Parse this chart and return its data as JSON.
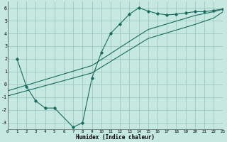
{
  "bg_color": "#c5e8e0",
  "grid_color": "#a0c8c0",
  "line_color": "#1a6b60",
  "xlabel": "Humidex (Indice chaleur)",
  "xlim": [
    0,
    23
  ],
  "ylim": [
    -3.5,
    6.5
  ],
  "yticks": [
    -3,
    -2,
    -1,
    0,
    1,
    2,
    3,
    4,
    5,
    6
  ],
  "xticks": [
    0,
    1,
    2,
    3,
    4,
    5,
    6,
    7,
    8,
    9,
    10,
    11,
    12,
    13,
    14,
    15,
    16,
    17,
    18,
    19,
    20,
    21,
    22,
    23
  ],
  "line1_x": [
    1,
    2,
    3,
    4,
    5,
    7,
    8,
    9,
    10,
    11,
    12,
    13,
    14,
    15,
    16,
    17,
    18,
    19,
    20,
    21,
    22,
    23
  ],
  "line1_y": [
    2.0,
    -0.15,
    -1.3,
    -1.85,
    -1.85,
    -3.35,
    -3.0,
    0.5,
    2.5,
    4.0,
    4.75,
    5.5,
    6.0,
    5.75,
    5.55,
    5.45,
    5.5,
    5.6,
    5.7,
    5.7,
    5.8,
    5.9
  ],
  "line2_x": [
    0,
    1,
    2,
    3,
    4,
    5,
    6,
    7,
    8,
    9,
    10,
    11,
    12,
    13,
    14,
    15,
    16,
    17,
    18,
    19,
    20,
    21,
    22,
    23
  ],
  "line2_y": [
    -0.5,
    -0.28,
    -0.06,
    0.16,
    0.38,
    0.6,
    0.82,
    1.04,
    1.26,
    1.48,
    1.95,
    2.42,
    2.9,
    3.37,
    3.84,
    4.3,
    4.52,
    4.74,
    4.96,
    5.18,
    5.4,
    5.55,
    5.7,
    5.9
  ],
  "line3_x": [
    0,
    1,
    2,
    3,
    4,
    5,
    6,
    7,
    8,
    9,
    10,
    11,
    12,
    13,
    14,
    15,
    16,
    17,
    18,
    19,
    20,
    21,
    22,
    23
  ],
  "line3_y": [
    -0.9,
    -0.7,
    -0.5,
    -0.3,
    -0.1,
    0.1,
    0.3,
    0.5,
    0.7,
    0.9,
    1.35,
    1.8,
    2.25,
    2.7,
    3.15,
    3.6,
    3.82,
    4.04,
    4.26,
    4.48,
    4.7,
    4.95,
    5.2,
    5.7
  ]
}
